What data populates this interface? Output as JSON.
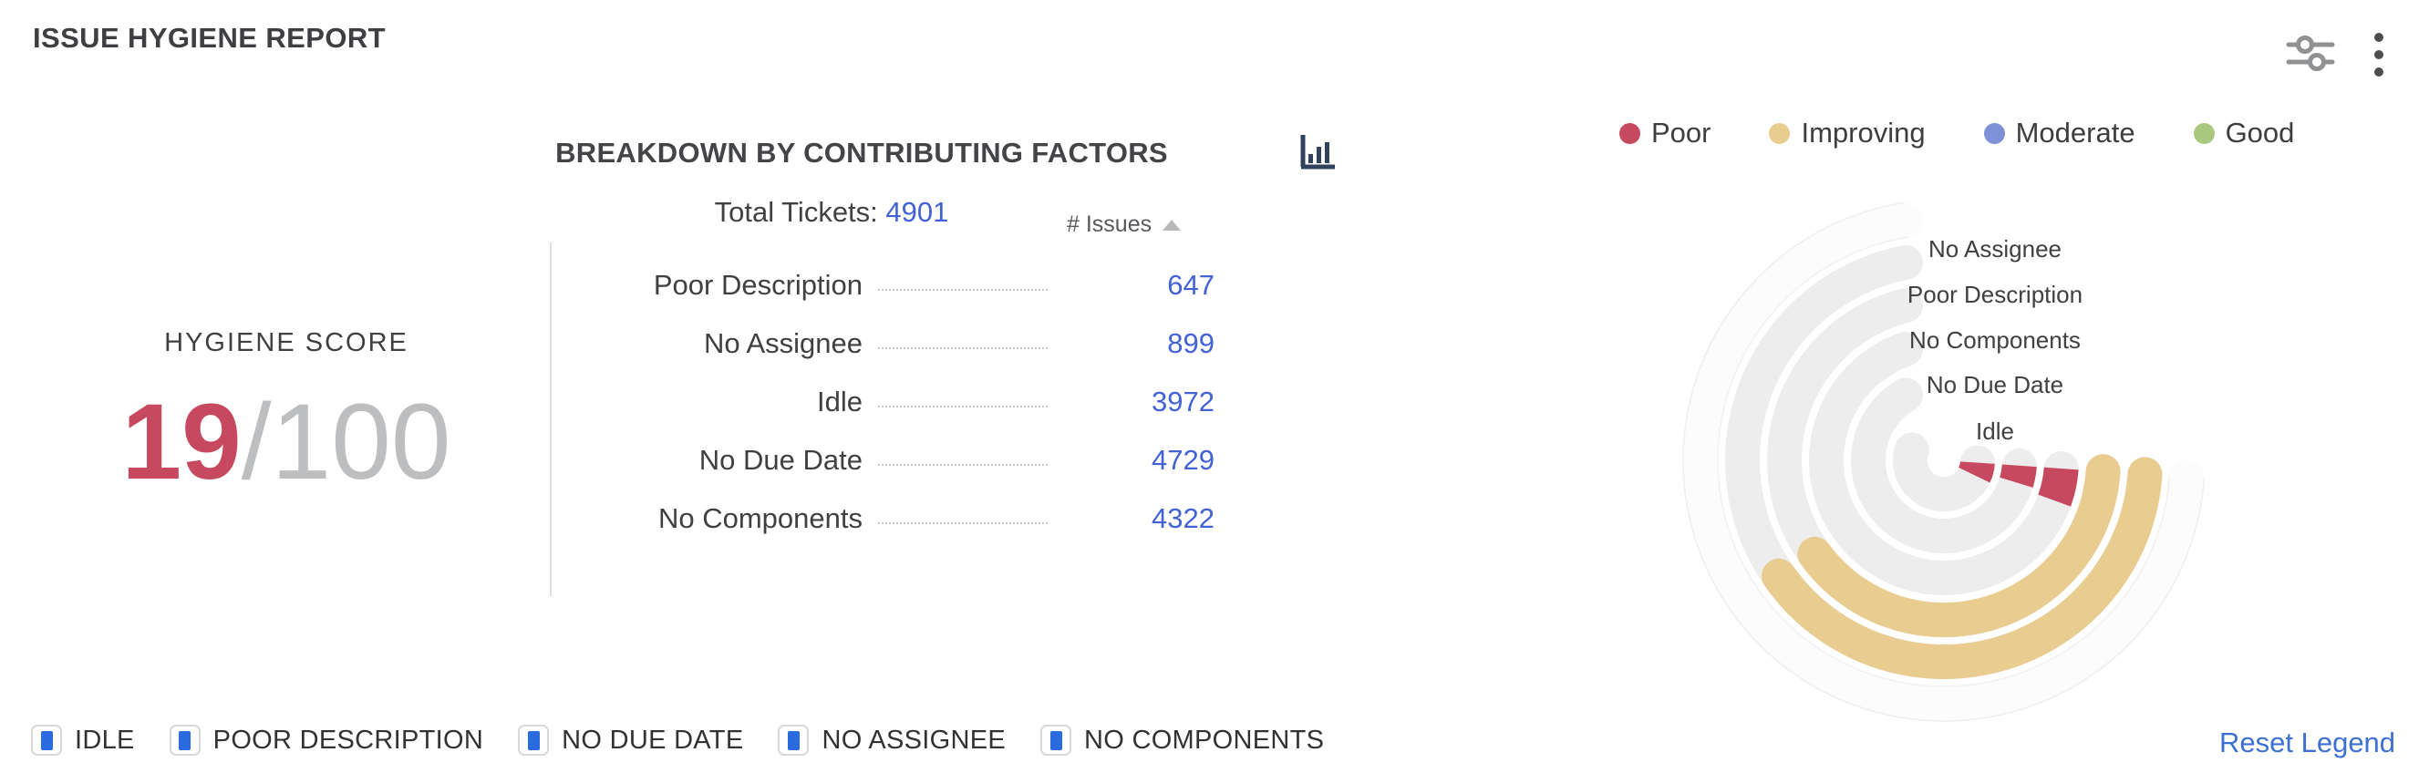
{
  "header": {
    "title": "ISSUE HYGIENE REPORT"
  },
  "score_panel": {
    "label": "HYGIENE SCORE",
    "score": "19",
    "max": "/100"
  },
  "breakdown": {
    "title": "BREAKDOWN BY CONTRIBUTING FACTORS",
    "total_label": "Total Tickets:",
    "total_value": "4901",
    "issues_header": "# Issues",
    "sort_direction": "ascending",
    "rows": [
      {
        "label": "Poor Description",
        "value": "647"
      },
      {
        "label": "No Assignee",
        "value": "899"
      },
      {
        "label": "Idle",
        "value": "3972"
      },
      {
        "label": "No Due Date",
        "value": "4729"
      },
      {
        "label": "No Components",
        "value": "4322"
      }
    ]
  },
  "status_legend": {
    "items": [
      {
        "label": "Poor",
        "color": "#c7495f"
      },
      {
        "label": "Improving",
        "color": "#e9cc90"
      },
      {
        "label": "Moderate",
        "color": "#7d90d8"
      },
      {
        "label": "Good",
        "color": "#a9c87d"
      }
    ]
  },
  "chart_data": {
    "type": "radial-bar",
    "title": "Breakdown by contributing factors",
    "total_tickets": 4901,
    "track_color": "#ededed",
    "start_angle_deg": -4,
    "ring_thickness": 38,
    "faint_outer_ring_radius": 267,
    "rings": [
      {
        "label": "No Assignee",
        "issues": 899,
        "status": "Improving",
        "color": "#e9cc90",
        "radius": 221,
        "arc_sweep_deg": 141
      },
      {
        "label": "Poor Description",
        "issues": 647,
        "status": "Improving",
        "color": "#e9cc90",
        "radius": 175,
        "arc_sweep_deg": 140
      },
      {
        "label": "No Components",
        "issues": 4322,
        "status": "Poor",
        "color": "#c7495f",
        "radius": 129,
        "arc_sweep_deg": 16
      },
      {
        "label": "No Due Date",
        "issues": 4729,
        "status": "Poor",
        "color": "#c7495f",
        "radius": 83,
        "arc_sweep_deg": 13
      },
      {
        "label": "Idle",
        "issues": 3972,
        "status": "Poor",
        "color": "#c7495f",
        "radius": 37,
        "arc_sweep_deg": 22
      }
    ]
  },
  "factor_legend": {
    "checkbox_color": "#2b6be0",
    "items": [
      "IDLE",
      "POOR DESCRIPTION",
      "NO DUE DATE",
      "NO ASSIGNEE",
      "NO COMPONENTS"
    ],
    "reset_label": "Reset Legend"
  }
}
